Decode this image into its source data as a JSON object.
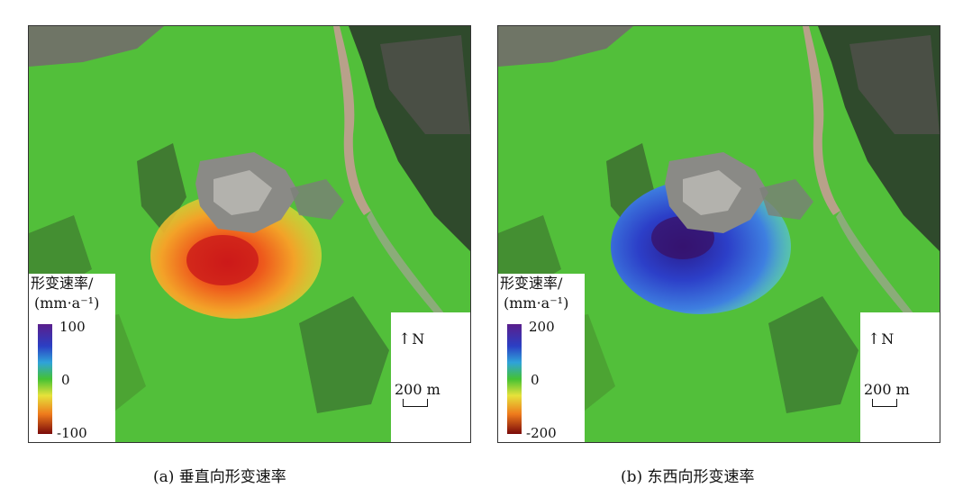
{
  "panels": [
    {
      "id": "a",
      "caption": "(a) 垂直向形变速率",
      "legend": {
        "title": "形变速率/",
        "unit": "(mm·a⁻¹)",
        "max": "100",
        "mid": "0",
        "min": "-100"
      },
      "north_label": "N",
      "scale_label": "200 m",
      "colors": {
        "low": "#7a0a0a",
        "mid": "#44c234",
        "high": "#5a1e8c"
      }
    },
    {
      "id": "b",
      "caption": "(b) 东西向形变速率",
      "legend": {
        "title": "形变速率/",
        "unit": "(mm·a⁻¹)",
        "max": "200",
        "mid": "0",
        "min": "-200"
      },
      "north_label": "N",
      "scale_label": "200 m",
      "colors": {
        "low": "#7a0a0a",
        "mid": "#44c234",
        "high": "#5a1e8c"
      }
    }
  ]
}
